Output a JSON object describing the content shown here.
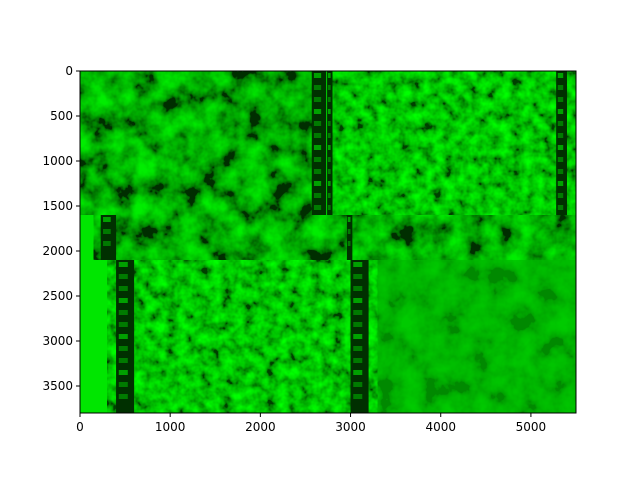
{
  "chart_data": {
    "type": "heatmap",
    "title": "",
    "xlabel": "",
    "ylabel": "",
    "xlim": [
      0,
      5500
    ],
    "ylim": [
      3800,
      0
    ],
    "x_ticks": [
      0,
      1000,
      2000,
      3000,
      4000,
      5000
    ],
    "y_ticks": [
      0,
      500,
      1000,
      1500,
      2000,
      2500,
      3000,
      3500
    ],
    "x_tick_labels": [
      "0",
      "1000",
      "2000",
      "3000",
      "4000",
      "5000"
    ],
    "y_tick_labels": [
      "0",
      "500",
      "1000",
      "1500",
      "2000",
      "2500",
      "3000",
      "3500"
    ],
    "colormap": "green channel",
    "colors": {
      "base": "#00e600",
      "bright": "#00ff00",
      "mid": "#00b800",
      "dark": "#006400",
      "darkest": "#003000",
      "axis": "#000000"
    },
    "panels": [
      {
        "name": "top-left image",
        "x": [
          0,
          2700
        ],
        "y": [
          0,
          1600
        ]
      },
      {
        "name": "top-right image",
        "x": [
          2800,
          5500
        ],
        "y": [
          0,
          1600
        ]
      },
      {
        "name": "middle strip",
        "x": [
          150,
          5500
        ],
        "y": [
          1600,
          2100
        ]
      },
      {
        "name": "bottom-left image",
        "x": [
          300,
          3300
        ],
        "y": [
          2100,
          3800
        ]
      },
      {
        "name": "bottom-right image",
        "x": [
          3300,
          5500
        ],
        "y": [
          2100,
          3800
        ]
      }
    ],
    "dark_bands": [
      {
        "x": [
          2570,
          2730
        ],
        "y": [
          0,
          1600
        ]
      },
      {
        "x": [
          2740,
          2800
        ],
        "y": [
          0,
          1600
        ]
      },
      {
        "x": [
          5280,
          5400
        ],
        "y": [
          0,
          1600
        ]
      },
      {
        "x": [
          230,
          400
        ],
        "y": [
          1600,
          2100
        ]
      },
      {
        "x": [
          2960,
          3020
        ],
        "y": [
          1600,
          2100
        ]
      },
      {
        "x": [
          400,
          600
        ],
        "y": [
          2100,
          3800
        ]
      },
      {
        "x": [
          3000,
          3200
        ],
        "y": [
          2100,
          3800
        ]
      }
    ]
  }
}
